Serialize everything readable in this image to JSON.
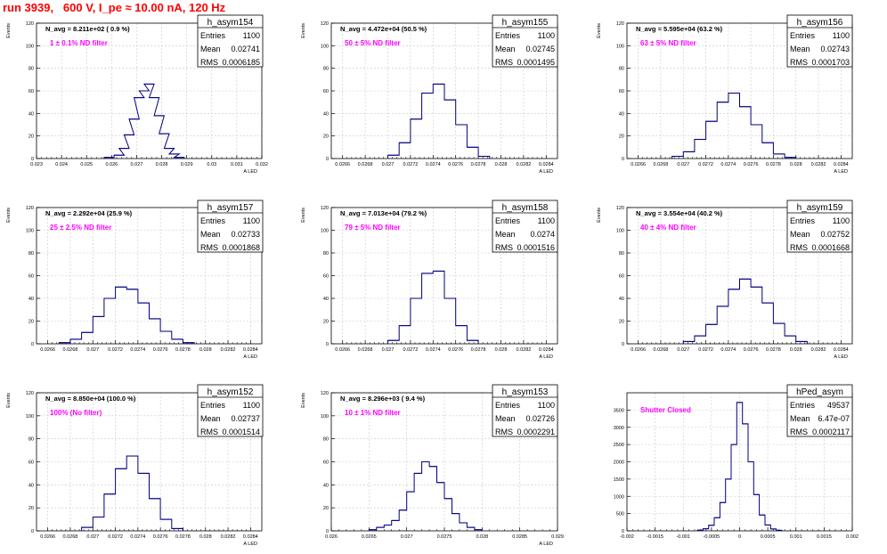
{
  "page_title": "run 3939,   600 V, I_pe ≈ 10.00 nA, 120 Hz",
  "colors": {
    "title": "#ff0000",
    "histogram": "#000080",
    "filter_label": "#ff00ff",
    "grid": "#c8c8c8",
    "axis": "#000000"
  },
  "chart_data": [
    {
      "type": "histogram",
      "name": "h_asym154",
      "stats": {
        "entries": "1100",
        "mean": "0.02741",
        "rms": "0.0006185"
      },
      "n_avg_label": "N_avg = 8.211e+02 ( 0.9 %)",
      "filter_label": "1 ± 0.1% ND filter",
      "xlabel": "A_LED",
      "ylabel": "Events",
      "xlim": [
        0.023,
        0.032
      ],
      "ylim": [
        0,
        120
      ],
      "xticks": [
        0.023,
        0.024,
        0.025,
        0.026,
        0.027,
        0.028,
        0.029,
        0.03,
        0.031,
        0.032
      ],
      "xtick_labels": [
        "0.023",
        "0.024",
        "0.025",
        "0.026",
        "0.027",
        "0.028",
        "0.029",
        "0.03",
        "0.031",
        "0.032"
      ],
      "yticks": [
        0,
        20,
        40,
        60,
        80,
        100,
        120
      ],
      "x": [
        0.0259,
        0.0263,
        0.0265,
        0.0267,
        0.0269,
        0.0271,
        0.0273,
        0.0275,
        0.0277,
        0.0279,
        0.0281,
        0.0283,
        0.0285,
        0.0287
      ],
      "values": [
        1,
        3,
        9,
        21,
        35,
        54,
        60,
        66,
        54,
        38,
        22,
        9,
        4,
        1
      ]
    },
    {
      "type": "histogram",
      "name": "h_asym155",
      "stats": {
        "entries": "1100",
        "mean": "0.02745",
        "rms": "0.0001495"
      },
      "n_avg_label": "N_avg = 4.472e+04 (50.5 %)",
      "filter_label": "50 ± 5% ND filter",
      "xlabel": "A_LED",
      "ylabel": "Events",
      "xlim": [
        0.0265,
        0.0285
      ],
      "ylim": [
        0,
        120
      ],
      "xticks": [
        0.0266,
        0.0268,
        0.027,
        0.0272,
        0.0274,
        0.0276,
        0.0278,
        0.028,
        0.0282,
        0.0284
      ],
      "xtick_labels": [
        "0.0266",
        "0.0268",
        "0.027",
        "0.0272",
        "0.0274",
        "0.0276",
        "0.0278",
        "0.028",
        "0.0282",
        "0.0284"
      ],
      "yticks": [
        0,
        20,
        40,
        60,
        80,
        100,
        120
      ],
      "x": [
        0.02705,
        0.02715,
        0.02725,
        0.02735,
        0.02745,
        0.02755,
        0.02765,
        0.02775,
        0.02785
      ],
      "values": [
        3,
        14,
        35,
        58,
        66,
        52,
        30,
        10,
        2
      ]
    },
    {
      "type": "histogram",
      "name": "h_asym156",
      "stats": {
        "entries": "1100",
        "mean": "0.02743",
        "rms": "0.0001703"
      },
      "n_avg_label": "N_avg = 5.595e+04 (63.2 %)",
      "filter_label": "63 ± 5% ND filter",
      "xlabel": "A_LED",
      "ylabel": "Events",
      "xlim": [
        0.0265,
        0.0285
      ],
      "ylim": [
        0,
        120
      ],
      "xticks": [
        0.0266,
        0.0268,
        0.027,
        0.0272,
        0.0274,
        0.0276,
        0.0278,
        0.028,
        0.0282,
        0.0284
      ],
      "xtick_labels": [
        "0.0266",
        "0.0268",
        "0.027",
        "0.0272",
        "0.0274",
        "0.0276",
        "0.0278",
        "0.028",
        "0.0282",
        "0.0284"
      ],
      "yticks": [
        0,
        20,
        40,
        60,
        80,
        100,
        120
      ],
      "x": [
        0.02695,
        0.02705,
        0.02715,
        0.02725,
        0.02735,
        0.02745,
        0.02755,
        0.02765,
        0.02775,
        0.02785,
        0.02795
      ],
      "values": [
        2,
        6,
        17,
        33,
        50,
        58,
        46,
        30,
        14,
        4,
        1
      ]
    },
    {
      "type": "histogram",
      "name": "h_asym157",
      "stats": {
        "entries": "1100",
        "mean": "0.02733",
        "rms": "0.0001868"
      },
      "n_avg_label": "N_avg = 2.292e+04 (25.9 %)",
      "filter_label": "25 ± 2.5% ND filter",
      "xlabel": "A_LED",
      "ylabel": "Events",
      "xlim": [
        0.0265,
        0.0285
      ],
      "ylim": [
        0,
        120
      ],
      "xticks": [
        0.0266,
        0.0268,
        0.027,
        0.0272,
        0.0274,
        0.0276,
        0.0278,
        0.028,
        0.0282,
        0.0284
      ],
      "xtick_labels": [
        "0.0266",
        "0.0268",
        "0.027",
        "0.0272",
        "0.0274",
        "0.0276",
        "0.0278",
        "0.028",
        "0.0282",
        "0.0284"
      ],
      "yticks": [
        0,
        20,
        40,
        60,
        80,
        100,
        120
      ],
      "x": [
        0.02675,
        0.02685,
        0.02695,
        0.02705,
        0.02715,
        0.02725,
        0.02735,
        0.02745,
        0.02755,
        0.02765,
        0.02775,
        0.02785
      ],
      "values": [
        1,
        4,
        10,
        24,
        40,
        50,
        48,
        36,
        22,
        11,
        4,
        1
      ]
    },
    {
      "type": "histogram",
      "name": "h_asym158",
      "stats": {
        "entries": "1100",
        "mean": "0.0274",
        "rms": "0.0001516"
      },
      "n_avg_label": "N_avg = 7.013e+04 (79.2 %)",
      "filter_label": "79 ± 5% ND filter",
      "xlabel": "A_LED",
      "ylabel": "Events",
      "xlim": [
        0.0265,
        0.0285
      ],
      "ylim": [
        0,
        120
      ],
      "xticks": [
        0.0266,
        0.0268,
        0.027,
        0.0272,
        0.0274,
        0.0276,
        0.0278,
        0.028,
        0.0282,
        0.0284
      ],
      "xtick_labels": [
        "0.0266",
        "0.0268",
        "0.027",
        "0.0272",
        "0.0274",
        "0.0276",
        "0.0278",
        "0.028",
        "0.0282",
        "0.0284"
      ],
      "yticks": [
        0,
        20,
        40,
        60,
        80,
        100,
        120
      ],
      "x": [
        0.02705,
        0.02715,
        0.02725,
        0.02735,
        0.02745,
        0.02755,
        0.02765,
        0.02775
      ],
      "values": [
        3,
        16,
        40,
        62,
        64,
        40,
        16,
        3
      ]
    },
    {
      "type": "histogram",
      "name": "h_asym159",
      "stats": {
        "entries": "1100",
        "mean": "0.02752",
        "rms": "0.0001668"
      },
      "n_avg_label": "N_avg = 3.554e+04 (40.2 %)",
      "filter_label": "40 ± 4% ND filter",
      "xlabel": "A_LED",
      "ylabel": "Events",
      "xlim": [
        0.0265,
        0.0285
      ],
      "ylim": [
        0,
        120
      ],
      "xticks": [
        0.0266,
        0.0268,
        0.027,
        0.0272,
        0.0274,
        0.0276,
        0.0278,
        0.028,
        0.0282,
        0.0284
      ],
      "xtick_labels": [
        "0.0266",
        "0.0268",
        "0.027",
        "0.0272",
        "0.0274",
        "0.0276",
        "0.0278",
        "0.028",
        "0.0282",
        "0.0284"
      ],
      "yticks": [
        0,
        20,
        40,
        60,
        80,
        100,
        120
      ],
      "x": [
        0.02705,
        0.02715,
        0.02725,
        0.02735,
        0.02745,
        0.02755,
        0.02765,
        0.02775,
        0.02785,
        0.02795,
        0.02805
      ],
      "values": [
        2,
        7,
        17,
        33,
        48,
        57,
        50,
        36,
        18,
        7,
        2
      ]
    },
    {
      "type": "histogram",
      "name": "h_asym152",
      "stats": {
        "entries": "1100",
        "mean": "0.02737",
        "rms": "0.0001514"
      },
      "n_avg_label": "N_avg = 8.850e+04 (100.0 %)",
      "filter_label": "100% (No filter)",
      "xlabel": "A_LED",
      "ylabel": "Events",
      "xlim": [
        0.0265,
        0.0285
      ],
      "ylim": [
        0,
        120
      ],
      "xticks": [
        0.0266,
        0.0268,
        0.027,
        0.0272,
        0.0274,
        0.0276,
        0.0278,
        0.028,
        0.0282,
        0.0284
      ],
      "xtick_labels": [
        "0.0266",
        "0.0268",
        "0.027",
        "0.0272",
        "0.0274",
        "0.0276",
        "0.0278",
        "0.028",
        "0.0282",
        "0.0284"
      ],
      "yticks": [
        0,
        20,
        40,
        60,
        80,
        100,
        120
      ],
      "x": [
        0.02695,
        0.02705,
        0.02715,
        0.02725,
        0.02735,
        0.02745,
        0.02755,
        0.02765,
        0.02775
      ],
      "values": [
        3,
        12,
        32,
        54,
        65,
        50,
        28,
        10,
        2
      ]
    },
    {
      "type": "histogram",
      "name": "h_asym153",
      "stats": {
        "entries": "1100",
        "mean": "0.02726",
        "rms": "0.0002291"
      },
      "n_avg_label": "N_avg = 8.296e+03 ( 9.4 %)",
      "filter_label": "10 ± 1% ND filter",
      "xlabel": "A_LED",
      "ylabel": "Events",
      "xlim": [
        0.026,
        0.029
      ],
      "ylim": [
        0,
        120
      ],
      "xticks": [
        0.026,
        0.0265,
        0.027,
        0.0275,
        0.028,
        0.0285,
        0.029
      ],
      "xtick_labels": [
        "0.026",
        "0.0265",
        "0.027",
        "0.0275",
        "0.028",
        "0.0285",
        "0.029"
      ],
      "yticks": [
        0,
        20,
        40,
        60,
        80,
        100,
        120
      ],
      "x": [
        0.02655,
        0.02665,
        0.02675,
        0.02685,
        0.02695,
        0.02705,
        0.02715,
        0.02725,
        0.02735,
        0.02745,
        0.02755,
        0.02765,
        0.02775,
        0.02785,
        0.02795
      ],
      "values": [
        1,
        3,
        5,
        9,
        18,
        34,
        50,
        60,
        56,
        42,
        28,
        15,
        7,
        3,
        1
      ]
    },
    {
      "type": "histogram",
      "name": "hPed_asym",
      "stats": {
        "entries": "49537",
        "mean": "6.47e-07",
        "rms": "0.0002117"
      },
      "n_avg_label": "",
      "filter_label": "Shutter Closed",
      "xlabel": "",
      "ylabel": "",
      "xlim": [
        -0.002,
        0.002
      ],
      "ylim": [
        0,
        4000
      ],
      "xticks": [
        -0.002,
        -0.0015,
        -0.001,
        -0.0005,
        0,
        0.0005,
        0.001,
        0.0015,
        0.002
      ],
      "xtick_labels": [
        "-0.002",
        "-0.0015",
        "-0.001",
        "-0.0005",
        "0",
        "0.0005",
        "0.001",
        "0.0015",
        "0.002"
      ],
      "yticks": [
        0,
        500,
        1000,
        1500,
        2000,
        2500,
        3000,
        3500
      ],
      "x": [
        -0.0007,
        -0.0006,
        -0.0005,
        -0.0004,
        -0.0003,
        -0.0002,
        -0.0001,
        0,
        0.0001,
        0.0002,
        0.0003,
        0.0004,
        0.0005,
        0.0006,
        0.0007
      ],
      "values": [
        20,
        60,
        160,
        380,
        820,
        1500,
        2500,
        3720,
        3100,
        2000,
        1050,
        460,
        170,
        55,
        15
      ]
    }
  ]
}
